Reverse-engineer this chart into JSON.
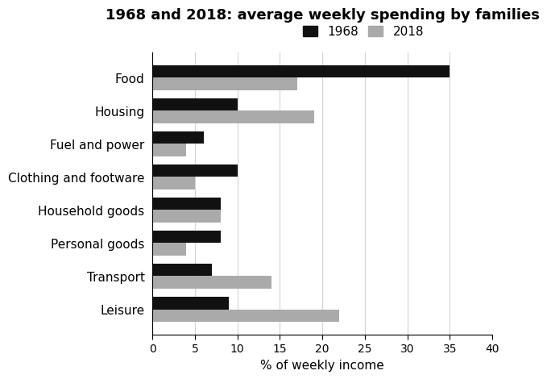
{
  "title": "1968 and 2018: average weekly spending by families",
  "categories": [
    "Food",
    "Housing",
    "Fuel and power",
    "Clothing and footware",
    "Household goods",
    "Personal goods",
    "Transport",
    "Leisure"
  ],
  "values_1968": [
    35,
    10,
    6,
    10,
    8,
    8,
    7,
    9
  ],
  "values_2018": [
    17,
    19,
    4,
    5,
    8,
    4,
    14,
    22
  ],
  "color_1968": "#111111",
  "color_2018": "#aaaaaa",
  "xlabel": "% of weekly income",
  "xlim": [
    0,
    40
  ],
  "xticks": [
    0,
    5,
    10,
    15,
    20,
    25,
    30,
    35,
    40
  ],
  "legend_labels": [
    "1968",
    "2018"
  ],
  "bar_height": 0.38,
  "title_fontsize": 13,
  "label_fontsize": 11,
  "tick_fontsize": 10,
  "legend_fontsize": 11,
  "background_color": "#ffffff"
}
